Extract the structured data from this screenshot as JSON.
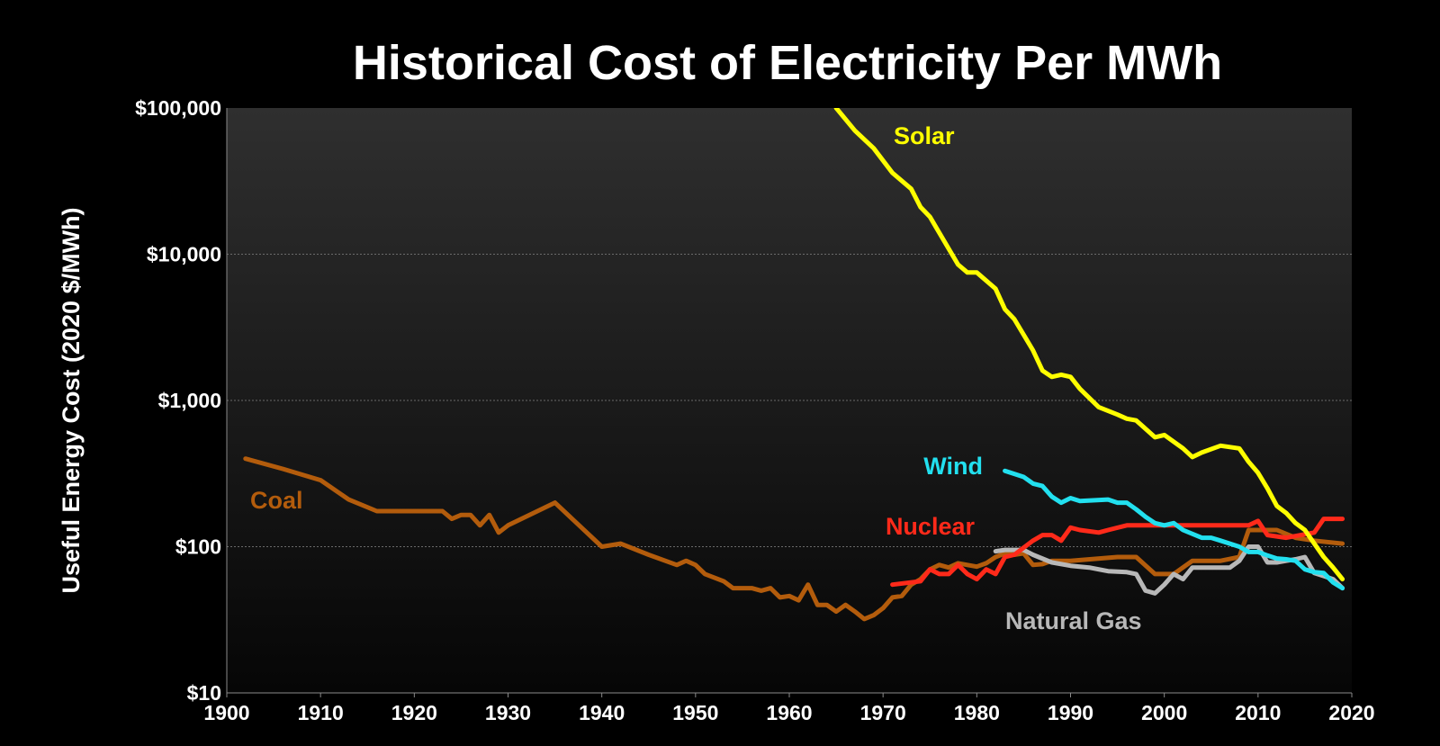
{
  "chart_data": {
    "type": "line",
    "title": "Historical Cost of Electricity Per MWh",
    "xlabel": "",
    "ylabel": "Useful Energy Cost (2020 $/MWh)",
    "y_scale": "log",
    "xlim": [
      1900,
      2020
    ],
    "ylim": [
      10,
      100000
    ],
    "x_ticks": [
      1900,
      1910,
      1920,
      1930,
      1940,
      1950,
      1960,
      1970,
      1980,
      1990,
      2000,
      2010,
      2020
    ],
    "x_tick_labels": [
      "1900",
      "1910",
      "1920",
      "1930",
      "1940",
      "1950",
      "1960",
      "1970",
      "1980",
      "1990",
      "2000",
      "2010",
      "2020"
    ],
    "y_ticks": [
      10,
      100,
      1000,
      10000,
      100000
    ],
    "y_tick_labels": [
      "$10",
      "$100",
      "$1,000",
      "$10,000",
      "$100,000"
    ],
    "grid": true,
    "legend": "inline labels",
    "background": "#000000",
    "series": [
      {
        "name": "Coal",
        "color": "#b35c0c",
        "points": [
          [
            1902,
            400
          ],
          [
            1906,
            340
          ],
          [
            1910,
            285
          ],
          [
            1913,
            210
          ],
          [
            1916,
            175
          ],
          [
            1920,
            175
          ],
          [
            1923,
            175
          ],
          [
            1924,
            155
          ],
          [
            1925,
            165
          ],
          [
            1926,
            165
          ],
          [
            1927,
            140
          ],
          [
            1928,
            165
          ],
          [
            1929,
            125
          ],
          [
            1930,
            140
          ],
          [
            1935,
            200
          ],
          [
            1940,
            100
          ],
          [
            1942,
            105
          ],
          [
            1945,
            88
          ],
          [
            1948,
            75
          ],
          [
            1949,
            80
          ],
          [
            1950,
            75
          ],
          [
            1951,
            65
          ],
          [
            1953,
            58
          ],
          [
            1954,
            52
          ],
          [
            1956,
            52
          ],
          [
            1957,
            50
          ],
          [
            1958,
            52
          ],
          [
            1959,
            45
          ],
          [
            1960,
            46
          ],
          [
            1961,
            43
          ],
          [
            1962,
            55
          ],
          [
            1963,
            40
          ],
          [
            1964,
            40
          ],
          [
            1965,
            36
          ],
          [
            1966,
            40
          ],
          [
            1967,
            36
          ],
          [
            1968,
            32
          ],
          [
            1969,
            34
          ],
          [
            1970,
            38
          ],
          [
            1971,
            45
          ],
          [
            1972,
            46
          ],
          [
            1973,
            55
          ],
          [
            1974,
            60
          ],
          [
            1975,
            70
          ],
          [
            1976,
            75
          ],
          [
            1977,
            72
          ],
          [
            1978,
            77
          ],
          [
            1979,
            75
          ],
          [
            1980,
            73
          ],
          [
            1981,
            77
          ],
          [
            1982,
            85
          ],
          [
            1983,
            90
          ],
          [
            1984,
            88
          ],
          [
            1985,
            90
          ],
          [
            1986,
            75
          ],
          [
            1987,
            76
          ],
          [
            1988,
            80
          ],
          [
            1990,
            80
          ],
          [
            1995,
            85
          ],
          [
            1997,
            85
          ],
          [
            1999,
            65
          ],
          [
            2001,
            65
          ],
          [
            2003,
            80
          ],
          [
            2006,
            80
          ],
          [
            2008,
            85
          ],
          [
            2009,
            130
          ],
          [
            2012,
            130
          ],
          [
            2014,
            115
          ],
          [
            2016,
            110
          ],
          [
            2019,
            105
          ]
        ]
      },
      {
        "name": "Solar",
        "color": "#ffff00",
        "points": [
          [
            1965,
            100000
          ],
          [
            1967,
            70000
          ],
          [
            1969,
            53000
          ],
          [
            1971,
            36000
          ],
          [
            1973,
            28000
          ],
          [
            1974,
            21000
          ],
          [
            1975,
            18000
          ],
          [
            1976,
            14000
          ],
          [
            1978,
            8500
          ],
          [
            1979,
            7500
          ],
          [
            1980,
            7500
          ],
          [
            1982,
            5800
          ],
          [
            1983,
            4200
          ],
          [
            1984,
            3600
          ],
          [
            1986,
            2200
          ],
          [
            1987,
            1600
          ],
          [
            1988,
            1450
          ],
          [
            1989,
            1500
          ],
          [
            1990,
            1450
          ],
          [
            1991,
            1200
          ],
          [
            1993,
            900
          ],
          [
            1995,
            800
          ],
          [
            1996,
            750
          ],
          [
            1997,
            730
          ],
          [
            1999,
            560
          ],
          [
            2000,
            580
          ],
          [
            2002,
            470
          ],
          [
            2003,
            410
          ],
          [
            2004,
            440
          ],
          [
            2006,
            490
          ],
          [
            2008,
            470
          ],
          [
            2009,
            380
          ],
          [
            2010,
            320
          ],
          [
            2011,
            250
          ],
          [
            2012,
            190
          ],
          [
            2013,
            170
          ],
          [
            2014,
            145
          ],
          [
            2015,
            130
          ],
          [
            2016,
            105
          ],
          [
            2017,
            85
          ],
          [
            2018,
            72
          ],
          [
            2019,
            60
          ]
        ]
      },
      {
        "name": "Wind",
        "color": "#22e0ef",
        "points": [
          [
            1983,
            330
          ],
          [
            1985,
            300
          ],
          [
            1986,
            270
          ],
          [
            1987,
            260
          ],
          [
            1988,
            220
          ],
          [
            1989,
            200
          ],
          [
            1990,
            215
          ],
          [
            1991,
            205
          ],
          [
            1994,
            210
          ],
          [
            1995,
            200
          ],
          [
            1996,
            200
          ],
          [
            1997,
            180
          ],
          [
            1998,
            160
          ],
          [
            1999,
            145
          ],
          [
            2000,
            140
          ],
          [
            2001,
            145
          ],
          [
            2002,
            130
          ],
          [
            2004,
            115
          ],
          [
            2005,
            115
          ],
          [
            2006,
            110
          ],
          [
            2008,
            100
          ],
          [
            2009,
            92
          ],
          [
            2010,
            92
          ],
          [
            2011,
            87
          ],
          [
            2012,
            83
          ],
          [
            2013,
            82
          ],
          [
            2014,
            80
          ],
          [
            2015,
            70
          ],
          [
            2016,
            67
          ],
          [
            2017,
            66
          ],
          [
            2018,
            57
          ],
          [
            2019,
            52
          ]
        ]
      },
      {
        "name": "Nuclear",
        "color": "#ff2a1a",
        "points": [
          [
            1971,
            55
          ],
          [
            1974,
            58
          ],
          [
            1975,
            70
          ],
          [
            1976,
            65
          ],
          [
            1977,
            65
          ],
          [
            1978,
            75
          ],
          [
            1979,
            65
          ],
          [
            1980,
            60
          ],
          [
            1981,
            70
          ],
          [
            1982,
            65
          ],
          [
            1983,
            85
          ],
          [
            1984,
            88
          ],
          [
            1986,
            110
          ],
          [
            1987,
            120
          ],
          [
            1988,
            120
          ],
          [
            1989,
            110
          ],
          [
            1990,
            135
          ],
          [
            1991,
            130
          ],
          [
            1993,
            125
          ],
          [
            1994,
            130
          ],
          [
            1996,
            140
          ],
          [
            1998,
            140
          ],
          [
            2000,
            140
          ],
          [
            2002,
            140
          ],
          [
            2009,
            140
          ],
          [
            2010,
            150
          ],
          [
            2011,
            120
          ],
          [
            2013,
            115
          ],
          [
            2016,
            125
          ],
          [
            2017,
            155
          ],
          [
            2019,
            155
          ]
        ]
      },
      {
        "name": "Natural Gas",
        "color": "#b8b8b8",
        "points": [
          [
            1982,
            93
          ],
          [
            1983,
            95
          ],
          [
            1985,
            95
          ],
          [
            1986,
            88
          ],
          [
            1988,
            78
          ],
          [
            1990,
            74
          ],
          [
            1992,
            72
          ],
          [
            1994,
            68
          ],
          [
            1996,
            67
          ],
          [
            1997,
            65
          ],
          [
            1998,
            50
          ],
          [
            1999,
            48
          ],
          [
            2000,
            55
          ],
          [
            2001,
            65
          ],
          [
            2002,
            60
          ],
          [
            2003,
            72
          ],
          [
            2007,
            72
          ],
          [
            2008,
            80
          ],
          [
            2009,
            100
          ],
          [
            2010,
            100
          ],
          [
            2011,
            78
          ],
          [
            2012,
            78
          ],
          [
            2013,
            80
          ],
          [
            2014,
            82
          ],
          [
            2015,
            85
          ],
          [
            2016,
            66
          ],
          [
            2017,
            63
          ],
          [
            2018,
            60
          ],
          [
            2019,
            52
          ]
        ]
      }
    ]
  }
}
